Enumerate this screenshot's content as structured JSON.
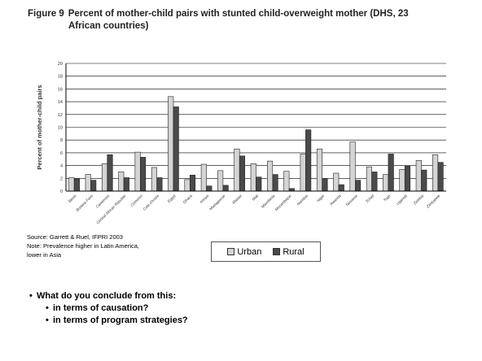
{
  "title": {
    "prefix": "Figure 9",
    "line1": "Percent of mother-child pairs with stunted child-overweight mother (DHS, 23",
    "line2": "African countries)"
  },
  "source": {
    "line1": "Source:  Garrett & Ruel, IFPRI 2003",
    "line2": "Note:  Prevalence higher in Latin America,",
    "line3": "lower in Asia"
  },
  "bullets": {
    "main": "What do you conclude from this:",
    "sub1": "in terms of causation?",
    "sub2": "in terms of program strategies?"
  },
  "chart_data": {
    "type": "bar",
    "title": "Percent of mother-child pairs with stunted child-overweight mother (DHS, 23 African countries)",
    "xlabel": "",
    "ylabel": "Percent of mother-child pairs",
    "ylim": [
      0,
      20
    ],
    "yticks": [
      0,
      2,
      4,
      6,
      8,
      10,
      12,
      14,
      16,
      18,
      20
    ],
    "grid": true,
    "legend_position": "bottom-center",
    "categories": [
      "Benin",
      "Burkina Faso",
      "Cameroon",
      "Central African Republic",
      "Comoros",
      "Cote d'Ivoire",
      "Egypt",
      "Ghana",
      "Kenya",
      "Madagascar",
      "Malawi",
      "Mali",
      "Mauritania",
      "Mozambique",
      "Namibia",
      "Niger",
      "Rwanda",
      "Tanzania",
      "Tchad",
      "Togo",
      "Uganda",
      "Zambia",
      "Zimbabwe"
    ],
    "series": [
      {
        "name": "Urban",
        "color": "#d4d4d4",
        "values": [
          2.1,
          2.6,
          4.3,
          3.0,
          6.1,
          3.7,
          14.8,
          1.8,
          4.2,
          3.2,
          6.6,
          4.3,
          4.7,
          3.1,
          5.8,
          6.6,
          2.8,
          7.7,
          3.8,
          2.6,
          3.4,
          4.8,
          5.7
        ]
      },
      {
        "name": "Rural",
        "color": "#4a4a4a",
        "values": [
          1.9,
          1.7,
          5.7,
          2.1,
          5.3,
          2.1,
          13.2,
          2.5,
          0.8,
          0.9,
          5.5,
          2.2,
          2.6,
          0.4,
          9.6,
          1.9,
          1.0,
          1.7,
          3.0,
          5.8,
          3.9,
          3.3,
          4.5
        ]
      }
    ]
  }
}
